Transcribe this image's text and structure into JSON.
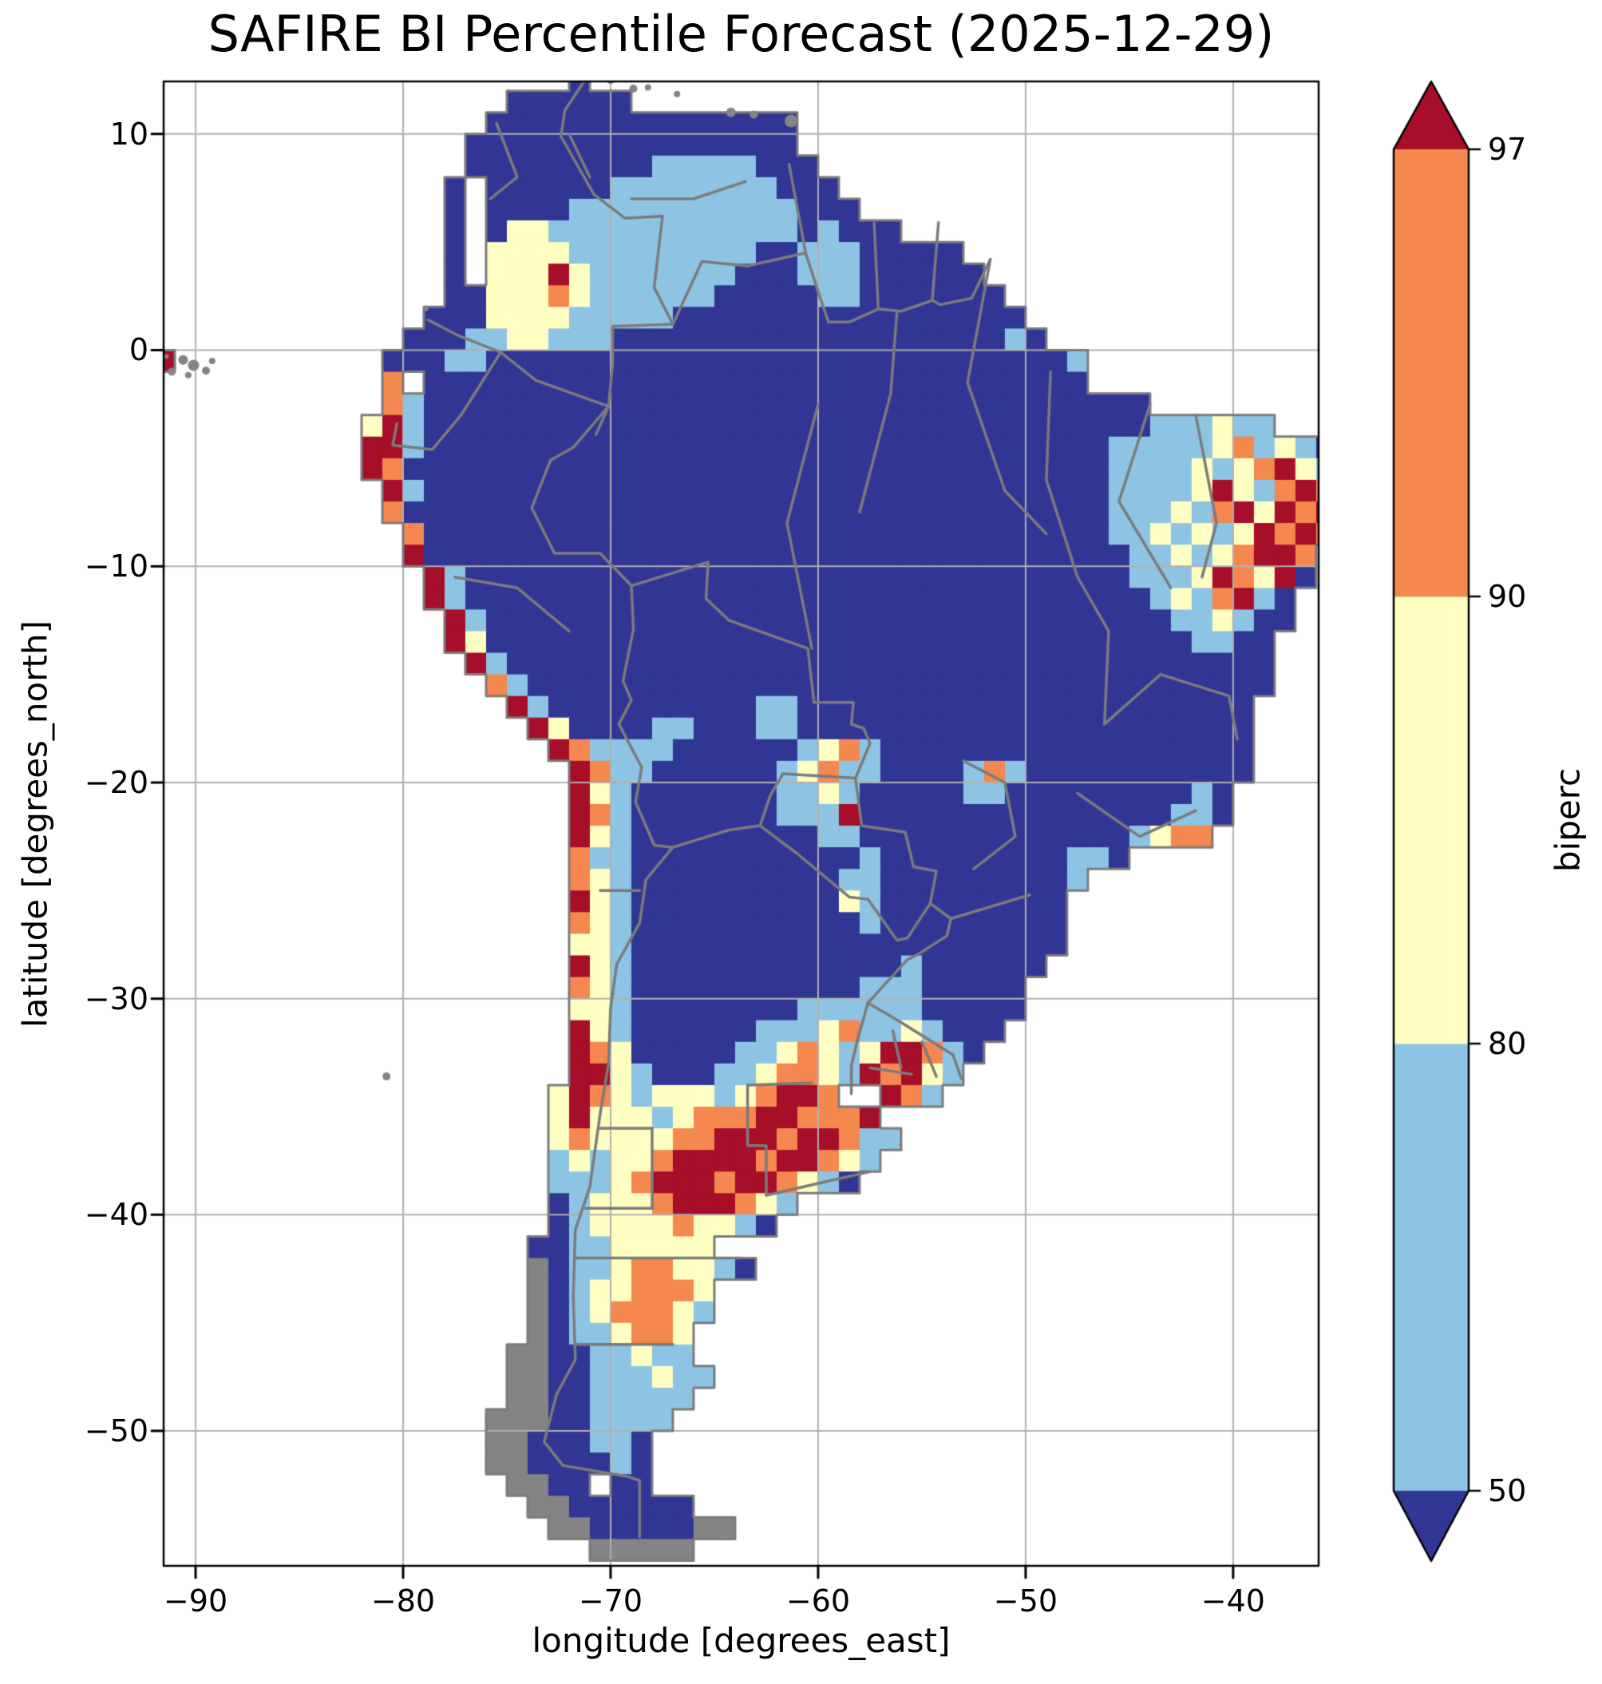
{
  "title": "SAFIRE BI Percentile Forecast (2025-12-29)",
  "axes": {
    "xlabel": "longitude [degrees_east]",
    "ylabel": "latitude [degrees_north]",
    "xticks": [
      {
        "v": -90,
        "label": "−90"
      },
      {
        "v": -80,
        "label": "−80"
      },
      {
        "v": -70,
        "label": "−70"
      },
      {
        "v": -60,
        "label": "−60"
      },
      {
        "v": -50,
        "label": "−50"
      },
      {
        "v": -40,
        "label": "−40"
      }
    ],
    "yticks": [
      {
        "v": 10,
        "label": "10"
      },
      {
        "v": 0,
        "label": "0"
      },
      {
        "v": -10,
        "label": "−10"
      },
      {
        "v": -20,
        "label": "−20"
      },
      {
        "v": -30,
        "label": "−30"
      },
      {
        "v": -40,
        "label": "−40"
      },
      {
        "v": -50,
        "label": "−50"
      }
    ],
    "grid_color": "#b0b0b0",
    "frame_color": "#000000"
  },
  "colorbar": {
    "label": "biperc",
    "levels": [
      50,
      80,
      90,
      97
    ],
    "tick_labels": [
      "97",
      "90",
      "80",
      "50"
    ],
    "segment_colors_bottom_to_top": [
      "#8ec4e3",
      "#ffffc2",
      "#f5884e"
    ],
    "under_color": "#313695",
    "over_color": "#a60e29",
    "extend": "both"
  },
  "chart_data": {
    "type": "heatmap",
    "title": "SAFIRE BI Percentile Forecast (2025-12-29)",
    "variable": "biperc",
    "units": "percentile",
    "lon_range": [
      -91.54,
      -35.88
    ],
    "lat_range": [
      -56.24,
      12.43
    ],
    "class_bins": {
      "0": "<50",
      "1": "50-80",
      "2": "80-90",
      "3": "90-97",
      "4": ">97",
      "g": "no-data land",
      ".": "ocean / no data"
    },
    "palette": {
      "0": "#313695",
      "1": "#8ec4e3",
      "2": "#ffffc2",
      "3": "#f5884e",
      "4": "#a60e29",
      "g": "#848484"
    },
    "border_color": "#7b7b7b",
    "grid": {
      "lon_west": -92,
      "lat_north": 13,
      "cell_deg": 1,
      "rows": [
        [
          20,
          "0"
        ],
        [
          17,
          "000000"
        ],
        [
          16,
          "000000000000000"
        ],
        [
          15,
          "0000000000000000"
        ],
        [
          15,
          "00000000011111000"
        ],
        [
          14,
          "0.00000011111111000"
        ],
        [
          14,
          "0.000011111111111000"
        ],
        [
          14,
          "0.02211111111111101000"
        ],
        [
          14,
          "0.22221111111110011100000"
        ],
        [
          14,
          "0.222421111111000111000000"
        ],
        [
          14,
          "002223211111100000110000000"
        ],
        [
          13,
          "00022221111100000000000000000"
        ],
        [
          12,
          "0001122111000000000000000000010"
        ],
        [
          0,
          "4..........0001100000000000000000000000000001"
        ],
        [
          11,
          "3.00000000000000000000000000000000"
        ],
        [
          11,
          "3100000000000000000000000000000000000"
        ],
        [
          10,
          "24100000000000000000000000000000000000111211"
        ],
        [
          10,
          "44100000000000000000000000000000000011111231210"
        ],
        [
          10,
          "43000000000000000000000000000000000011112123421"
        ],
        [
          11,
          "4100000000000000000000000000000000011112421343"
        ],
        [
          11,
          "3000000000000000000000000000000000011121342434"
        ],
        [
          12,
          "300000000000000000000000000000000011212124343"
        ],
        [
          12,
          "40000000000000000000000000000000000112123443"
        ],
        [
          13,
          "4100000000000000000000000000000000111243240"
        ],
        [
          13,
          "410000000000000000000000000000000001213410"
        ],
        [
          14,
          "41000000000000000000000000000000000112100"
        ],
        [
          14,
          "4200000000000000000000000000000000001100"
        ],
        [
          15,
          "410000000000000000000000000000000000000"
        ],
        [
          16,
          "31000000000000000000000000000000000000"
        ],
        [
          17,
          "410000000000110000000000000000000000"
        ],
        [
          18,
          "42000011000110000000000000000000000"
        ],
        [
          19,
          "4311110000001231000000000000000000"
        ],
        [
          20,
          "431100000012311000013100000000000"
        ],
        [
          20,
          "42100000001121000001100000000010"
        ],
        [
          20,
          "43100000001114000000000000000110"
        ],
        [
          20,
          "4210000000001100000000000001233"
        ],
        [
          20,
          "311000000000001000000000110"
        ],
        [
          20,
          "3210000000000110000000001"
        ],
        [
          20,
          "421000000000021000000000"
        ],
        [
          20,
          "321000000000001000000000"
        ],
        [
          20,
          "221000000000000000000000"
        ],
        [
          20,
          "42100000000000001000000"
        ],
        [
          20,
          "3210000000000011100000"
        ],
        [
          20,
          "2210000000011111100000"
        ],
        [
          20,
          "421000000111231121000"
        ],
        [
          20,
          "43200000112321244310"
        ],
        [
          20,
          "4421000112332143421"
        ],
        [
          19,
          "24321222123443..431"
        ],
        [
          19,
          "2422212333443334"
        ],
        [
          19,
          "23222233444344311"
        ],
        [
          19,
          "1212234444344321"
        ],
        [
          19,
          "111234443443210"
        ],
        [
          19,
          "012223444321"
        ],
        [
          19,
          "01222232210"
        ],
        [
          18,
          "001122222"
        ],
        [
          18,
          "g0112332210"
        ],
        [
          18,
          "g01223332"
        ],
        [
          18,
          "g01233321"
        ],
        [
          18,
          "g0112332"
        ],
        [
          17,
          "gg0011211"
        ],
        [
          17,
          "gg00111211"
        ],
        [
          17,
          "gg0011111"
        ],
        [
          16,
          "ggg001111"
        ],
        [
          16,
          "gg000110"
        ],
        [
          16,
          "gg000010"
        ],
        [
          17,
          "gg00.00"
        ],
        [
          18,
          "gg000000"
        ],
        [
          19,
          "gg00000gg"
        ],
        [
          21,
          "ggggg"
        ]
      ]
    },
    "borders": [
      [
        [
          -71.3,
          12.4
        ],
        [
          -72.2,
          11.1
        ],
        [
          -72.4,
          9.9
        ],
        [
          -70.8,
          7.2
        ],
        [
          -69.3,
          6.1
        ],
        [
          -67.5,
          6.2
        ],
        [
          -67.9,
          2.9
        ],
        [
          -67.0,
          1.2
        ]
      ],
      [
        [
          -78.8,
          1.4
        ],
        [
          -77.4,
          0.7
        ],
        [
          -75.3,
          -0.1
        ],
        [
          -73.6,
          -1.4
        ],
        [
          -70.1,
          -2.6
        ],
        [
          -70.7,
          -3.9
        ]
      ],
      [
        [
          -67.0,
          1.2
        ],
        [
          -69.9,
          1.1
        ],
        [
          -69.9,
          -0.6
        ],
        [
          -70.1,
          -2.6
        ]
      ],
      [
        [
          -67.0,
          1.2
        ],
        [
          -65.6,
          4.1
        ],
        [
          -63.4,
          3.9
        ],
        [
          -60.6,
          4.5
        ]
      ],
      [
        [
          -60.6,
          4.5
        ],
        [
          -61.4,
          8.6
        ]
      ],
      [
        [
          -60.6,
          4.5
        ],
        [
          -60.0,
          2.7
        ],
        [
          -59.5,
          1.3
        ],
        [
          -58.5,
          1.3
        ],
        [
          -57.1,
          1.9
        ],
        [
          -56.0,
          1.8
        ],
        [
          -54.5,
          2.3
        ],
        [
          -54.1,
          2.1
        ],
        [
          -52.6,
          2.4
        ],
        [
          -51.7,
          4.2
        ]
      ],
      [
        [
          -57.3,
          5.9
        ],
        [
          -57.1,
          1.9
        ]
      ],
      [
        [
          -54.2,
          5.9
        ],
        [
          -54.5,
          2.3
        ]
      ],
      [
        [
          -80.3,
          -3.4
        ],
        [
          -80.5,
          -4.4
        ],
        [
          -78.6,
          -4.6
        ],
        [
          -77.2,
          -3.0
        ],
        [
          -75.3,
          -0.1
        ]
      ],
      [
        [
          -70.1,
          -2.6
        ],
        [
          -71.8,
          -4.5
        ],
        [
          -72.9,
          -5.1
        ],
        [
          -73.8,
          -7.3
        ],
        [
          -72.7,
          -9.4
        ],
        [
          -70.5,
          -9.4
        ],
        [
          -69.0,
          -10.9
        ]
      ],
      [
        [
          -69.0,
          -10.9
        ],
        [
          -68.9,
          -12.9
        ],
        [
          -69.4,
          -15.3
        ],
        [
          -69.0,
          -16.2
        ],
        [
          -69.6,
          -17.3
        ]
      ],
      [
        [
          -69.0,
          -10.9
        ],
        [
          -65.3,
          -9.8
        ],
        [
          -65.4,
          -11.5
        ],
        [
          -64.3,
          -12.5
        ],
        [
          -60.5,
          -13.8
        ],
        [
          -60.2,
          -16.3
        ],
        [
          -58.3,
          -16.3
        ],
        [
          -58.4,
          -17.3
        ],
        [
          -57.8,
          -17.5
        ],
        [
          -57.5,
          -18.2
        ],
        [
          -58.2,
          -19.8
        ]
      ],
      [
        [
          -69.6,
          -17.3
        ],
        [
          -68.5,
          -19.3
        ],
        [
          -68.8,
          -20.9
        ],
        [
          -67.9,
          -22.9
        ],
        [
          -67.0,
          -23.0
        ]
      ],
      [
        [
          -67.0,
          -23.0
        ],
        [
          -64.3,
          -22.2
        ],
        [
          -62.8,
          -22.0
        ],
        [
          -62.3,
          -20.6
        ],
        [
          -61.7,
          -19.6
        ],
        [
          -58.2,
          -19.8
        ]
      ],
      [
        [
          -58.2,
          -19.8
        ],
        [
          -57.9,
          -22.0
        ],
        [
          -55.8,
          -22.3
        ],
        [
          -55.4,
          -23.9
        ],
        [
          -54.3,
          -24.1
        ],
        [
          -54.6,
          -25.6
        ]
      ],
      [
        [
          -62.8,
          -22.0
        ],
        [
          -61.0,
          -23.3
        ],
        [
          -58.5,
          -25.3
        ],
        [
          -57.6,
          -25.4
        ],
        [
          -56.2,
          -27.3
        ],
        [
          -55.7,
          -27.2
        ],
        [
          -54.6,
          -25.6
        ]
      ],
      [
        [
          -54.6,
          -25.6
        ],
        [
          -53.6,
          -26.3
        ],
        [
          -53.8,
          -27.1
        ],
        [
          -55.1,
          -27.9
        ],
        [
          -55.7,
          -28.2
        ],
        [
          -57.6,
          -30.2
        ]
      ],
      [
        [
          -57.6,
          -30.2
        ],
        [
          -58.1,
          -31.9
        ],
        [
          -58.4,
          -33.1
        ],
        [
          -58.4,
          -34.4
        ]
      ],
      [
        [
          -57.6,
          -30.2
        ],
        [
          -56.0,
          -31.1
        ],
        [
          -53.5,
          -32.6
        ],
        [
          -53.1,
          -33.7
        ]
      ],
      [
        [
          -67.0,
          -23.0
        ],
        [
          -68.3,
          -24.5
        ],
        [
          -68.6,
          -26.5
        ],
        [
          -69.7,
          -28.4
        ],
        [
          -70.0,
          -30.4
        ],
        [
          -70.1,
          -33.0
        ],
        [
          -70.5,
          -35.3
        ],
        [
          -71.0,
          -38.7
        ],
        [
          -71.7,
          -40.7
        ],
        [
          -71.8,
          -43.8
        ],
        [
          -71.7,
          -46.7
        ],
        [
          -72.6,
          -48.3
        ],
        [
          -73.2,
          -50.5
        ],
        [
          -72.3,
          -51.6
        ],
        [
          -69.2,
          -52.1
        ],
        [
          -68.6,
          -52.3
        ]
      ],
      [
        [
          -68.6,
          -52.3
        ],
        [
          -68.6,
          -54.9
        ]
      ],
      [
        [
          -68.0,
          -36.0
        ],
        [
          -68.0,
          -39.7
        ]
      ],
      [
        [
          -71.2,
          -39.7
        ],
        [
          -68.0,
          -39.7
        ]
      ],
      [
        [
          -70.5,
          -36.0
        ],
        [
          -68.0,
          -36.0
        ]
      ],
      [
        [
          -71.7,
          -42.0
        ],
        [
          -63.7,
          -42.0
        ]
      ],
      [
        [
          -71.7,
          -46.0
        ],
        [
          -67.0,
          -46.0
        ]
      ],
      [
        [
          -63.4,
          -34.0
        ],
        [
          -60.3,
          -33.9
        ]
      ],
      [
        [
          -63.4,
          -34.0
        ],
        [
          -63.4,
          -36.8
        ],
        [
          -62.5,
          -36.8
        ],
        [
          -62.5,
          -39.1
        ],
        [
          -57.5,
          -38.0
        ]
      ],
      [
        [
          -56.2,
          1.8
        ],
        [
          -56.5,
          -2.0
        ],
        [
          -58.0,
          -7.5
        ]
      ],
      [
        [
          -51.7,
          4.2
        ],
        [
          -52.8,
          -1.5
        ],
        [
          -51.0,
          -6.5
        ],
        [
          -49.0,
          -8.5
        ]
      ],
      [
        [
          -60.0,
          -2.5
        ],
        [
          -61.5,
          -8.0
        ],
        [
          -60.3,
          -13.8
        ]
      ],
      [
        [
          -48.8,
          -1.0
        ],
        [
          -49.0,
          -6.0
        ],
        [
          -47.5,
          -10.5
        ],
        [
          -46.0,
          -13.0
        ],
        [
          -46.2,
          -17.3
        ]
      ],
      [
        [
          -44.0,
          -2.5
        ],
        [
          -45.5,
          -7.0
        ],
        [
          -43.0,
          -11.0
        ]
      ],
      [
        [
          -41.8,
          -3.0
        ],
        [
          -40.8,
          -8.0
        ],
        [
          -41.5,
          -10.5
        ]
      ],
      [
        [
          -46.2,
          -17.3
        ],
        [
          -43.5,
          -15.0
        ],
        [
          -40.2,
          -16.0
        ],
        [
          -39.8,
          -18.0
        ]
      ],
      [
        [
          -47.5,
          -20.5
        ],
        [
          -44.5,
          -22.5
        ],
        [
          -41.8,
          -21.3
        ]
      ],
      [
        [
          -53.0,
          -19.0
        ],
        [
          -51.0,
          -20.0
        ],
        [
          -50.5,
          -22.5
        ],
        [
          -52.5,
          -24.0
        ]
      ],
      [
        [
          -49.8,
          -25.2
        ],
        [
          -53.6,
          -26.3
        ]
      ],
      [
        [
          -75.5,
          10.5
        ],
        [
          -74.5,
          8.0
        ],
        [
          -75.8,
          7.0
        ]
      ],
      [
        [
          -69.0,
          7.0
        ],
        [
          -66.0,
          7.0
        ],
        [
          -63.5,
          7.8
        ]
      ],
      [
        [
          -72.0,
          10.0
        ],
        [
          -71.0,
          8.0
        ]
      ],
      [
        [
          -77.5,
          -10.5
        ],
        [
          -74.5,
          -11.0
        ],
        [
          -72.0,
          -13.0
        ]
      ],
      [
        [
          -70.5,
          -25.0
        ],
        [
          -68.6,
          -25.0
        ]
      ],
      [
        [
          -57.5,
          -33.2
        ],
        [
          -55.5,
          -33.5
        ]
      ],
      [
        [
          -56.4,
          -31.5
        ],
        [
          -56.0,
          -33.2
        ]
      ],
      [
        [
          -55.0,
          -32.0
        ],
        [
          -54.3,
          -33.6
        ]
      ]
    ],
    "islands": [
      [
        -90.6,
        -0.45,
        6
      ],
      [
        -90.1,
        -0.7,
        7
      ],
      [
        -89.5,
        -0.95,
        5
      ],
      [
        -91.15,
        -1.0,
        5
      ],
      [
        -90.35,
        -1.15,
        4
      ],
      [
        -89.2,
        -0.5,
        4
      ],
      [
        -91.4,
        -0.3,
        3
      ],
      [
        -70.0,
        12.5,
        5
      ],
      [
        -68.9,
        12.1,
        5
      ],
      [
        -68.2,
        12.15,
        4
      ],
      [
        -66.8,
        11.85,
        4
      ],
      [
        -64.2,
        11.0,
        6
      ],
      [
        -63.1,
        10.9,
        5
      ],
      [
        -61.3,
        10.6,
        8
      ],
      [
        -80.8,
        -33.6,
        5
      ],
      [
        -64.5,
        -54.8,
        6
      ],
      [
        -78.9,
        1.9,
        3
      ]
    ]
  }
}
